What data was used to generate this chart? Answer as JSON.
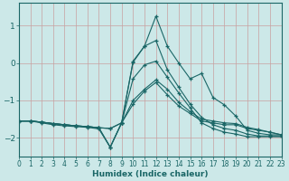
{
  "xlabel": "Humidex (Indice chaleur)",
  "background_color": "#cce8e8",
  "grid_color": "#c8a0a0",
  "line_color": "#1a6666",
  "x_values": [
    0,
    1,
    2,
    3,
    4,
    5,
    6,
    7,
    8,
    9,
    10,
    11,
    12,
    13,
    14,
    15,
    16,
    17,
    18,
    19,
    20,
    21,
    22,
    23
  ],
  "series": [
    [
      -1.55,
      -1.55,
      -1.58,
      -1.62,
      -1.65,
      -1.68,
      -1.7,
      -1.73,
      -1.75,
      -1.6,
      -1.1,
      -0.75,
      -0.52,
      -0.85,
      -1.15,
      -1.35,
      -1.55,
      -1.6,
      -1.65,
      -1.65,
      -1.75,
      -1.8,
      -1.85,
      -1.92
    ],
    [
      -1.55,
      -1.55,
      -1.58,
      -1.62,
      -1.65,
      -1.68,
      -1.7,
      -1.73,
      -1.75,
      -1.6,
      -1.0,
      -0.7,
      -0.45,
      -0.7,
      -1.05,
      -1.3,
      -1.5,
      -1.55,
      -1.6,
      -1.62,
      -1.72,
      -1.78,
      -1.85,
      -1.92
    ],
    [
      -1.55,
      -1.55,
      -1.58,
      -1.62,
      -1.65,
      -1.68,
      -1.7,
      -1.73,
      -2.25,
      -1.6,
      -0.42,
      -0.05,
      0.05,
      -0.38,
      -0.8,
      -1.2,
      -1.6,
      -1.75,
      -1.85,
      -1.9,
      -1.97,
      -1.97,
      -1.97,
      -1.97
    ],
    [
      -1.55,
      -1.55,
      -1.6,
      -1.65,
      -1.68,
      -1.7,
      -1.72,
      -1.76,
      -2.25,
      -1.6,
      0.02,
      0.45,
      0.6,
      -0.18,
      -0.65,
      -1.1,
      -1.45,
      -1.65,
      -1.75,
      -1.8,
      -1.9,
      -1.95,
      -1.95,
      -1.95
    ],
    [
      -1.55,
      -1.55,
      -1.58,
      -1.62,
      -1.65,
      -1.68,
      -1.7,
      -1.73,
      -2.25,
      -1.6,
      0.05,
      0.45,
      1.25,
      0.45,
      0.0,
      -0.42,
      -0.28,
      -0.92,
      -1.12,
      -1.42,
      -1.8,
      -1.88,
      -1.92,
      -1.92
    ]
  ],
  "xlim": [
    0,
    23
  ],
  "ylim": [
    -2.5,
    1.6
  ],
  "yticks": [
    -2,
    -1,
    0,
    1
  ],
  "xticks": [
    0,
    1,
    2,
    3,
    4,
    5,
    6,
    7,
    8,
    9,
    10,
    11,
    12,
    13,
    14,
    15,
    16,
    17,
    18,
    19,
    20,
    21,
    22,
    23
  ]
}
